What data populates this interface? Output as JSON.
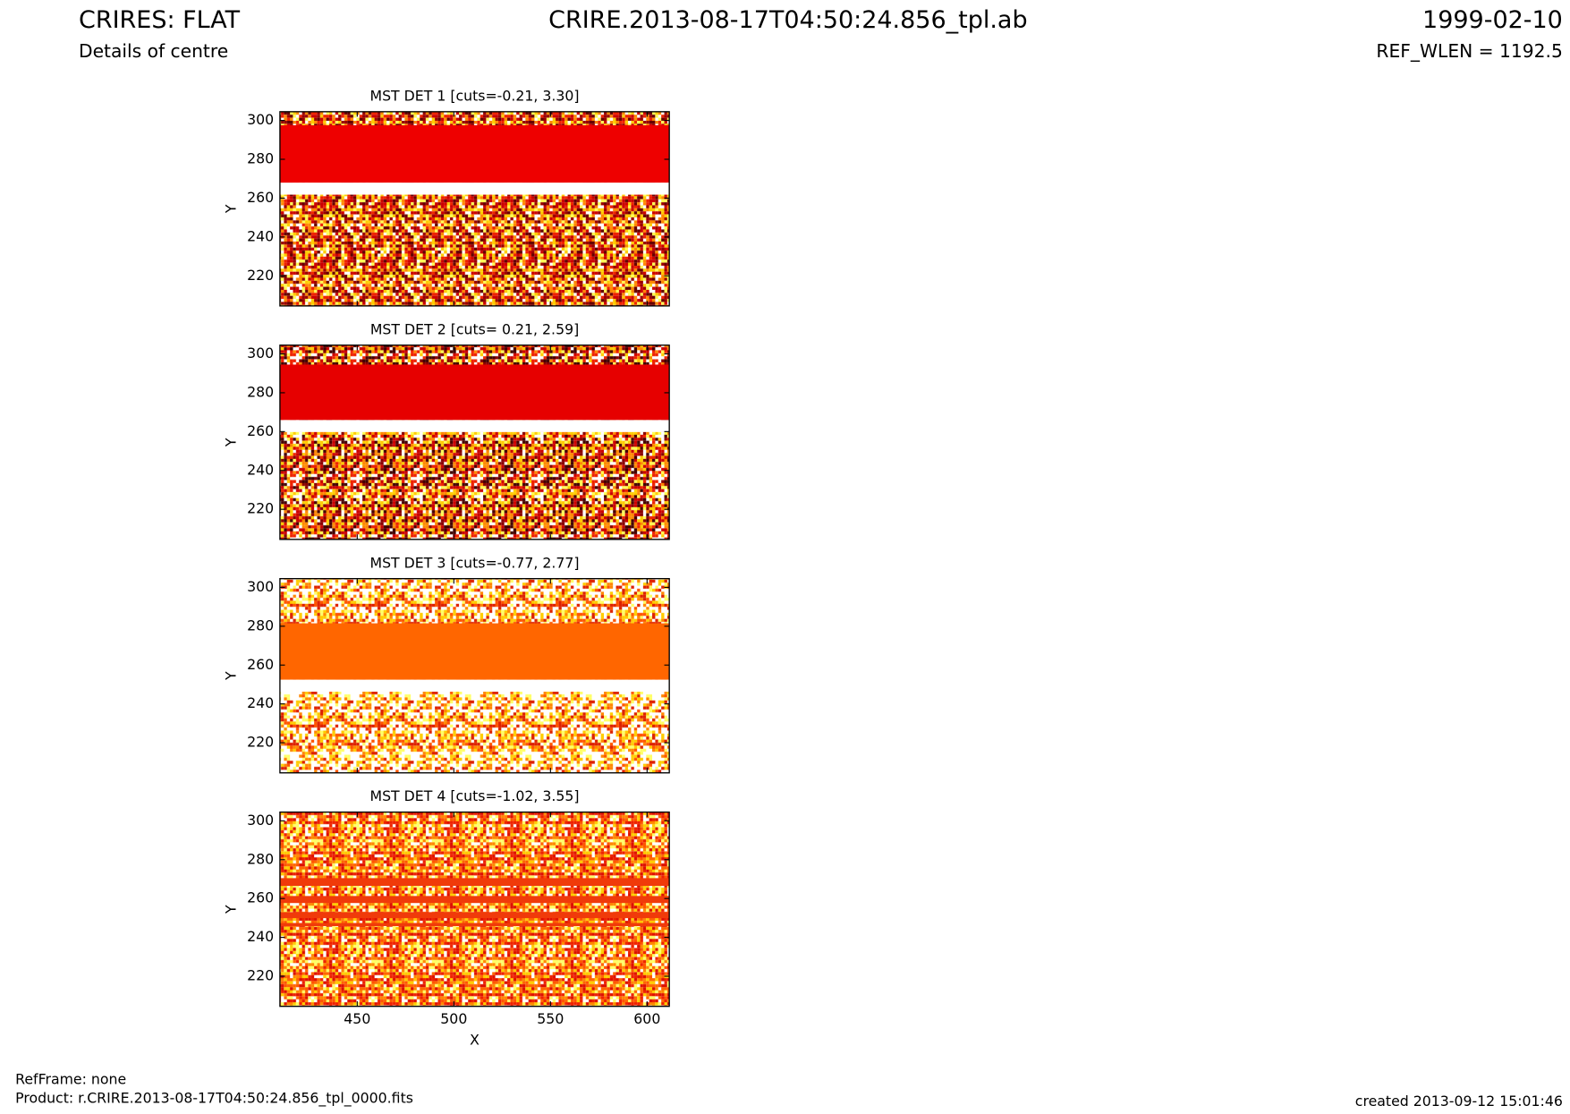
{
  "header": {
    "title": "CRIRES: FLAT",
    "subtitle": "Details of centre",
    "file": "CRIRE.2013-08-17T04:50:24.856_tpl.ab",
    "date": "1999-02-10",
    "ref_wlen": "REF_WLEN = 1192.5"
  },
  "footer": {
    "refframe": "RefFrame: none",
    "product": "Product: r.CRIRE.2013-08-17T04:50:24.856_tpl_0000.fits",
    "created": "created 2013-09-12 15:01:46"
  },
  "chart_data": [
    {
      "type": "image",
      "title": "MST DET 1 [cuts=-0.21, 3.30]",
      "ylabel": "Y",
      "xlim": [
        410,
        611.5
      ],
      "ylim": [
        204.5,
        304.5
      ],
      "xticks": [
        450,
        500,
        550,
        600
      ],
      "yticks": [
        220,
        240,
        260,
        280,
        300
      ],
      "bands": [
        {
          "y": [
            268,
            297.5
          ],
          "color": "#ee0000"
        }
      ]
    },
    {
      "type": "image",
      "title": "MST DET 2 [cuts= 0.21, 2.59]",
      "ylabel": "Y",
      "xlim": [
        410,
        611.5
      ],
      "ylim": [
        204.5,
        304.5
      ],
      "xticks": [
        450,
        500,
        550,
        600
      ],
      "yticks": [
        220,
        240,
        260,
        280,
        300
      ],
      "bands": [
        {
          "y": [
            266,
            294.5
          ],
          "color": "#e60000"
        }
      ]
    },
    {
      "type": "image",
      "title": "MST DET 3 [cuts=-0.77, 2.77]",
      "ylabel": "Y",
      "xlim": [
        410,
        611.5
      ],
      "ylim": [
        204.5,
        304.5
      ],
      "xticks": [
        450,
        500,
        550,
        600
      ],
      "yticks": [
        220,
        240,
        260,
        280,
        300
      ],
      "bands": [
        {
          "y": [
            252.5,
            281.5
          ],
          "color": "#ff6600"
        }
      ]
    },
    {
      "type": "image",
      "title": "MST DET 4 [cuts=-1.02, 3.55]",
      "ylabel": "Y",
      "xlabel": "X",
      "xlim": [
        410,
        611.5
      ],
      "ylim": [
        204.5,
        304.5
      ],
      "xticks": [
        450,
        500,
        550,
        600
      ],
      "yticks": [
        220,
        240,
        260,
        280,
        300
      ],
      "bands": [
        {
          "y": [
            266.5,
            270.5
          ],
          "color": "#f03a0a"
        },
        {
          "y": [
            257.7,
            261.3
          ],
          "color": "#f03a0a"
        },
        {
          "y": [
            249.9,
            253
          ],
          "color": "#f03a0a"
        },
        {
          "y": [
            245.8,
            247.4
          ],
          "color": "#f03a0a"
        }
      ]
    }
  ]
}
